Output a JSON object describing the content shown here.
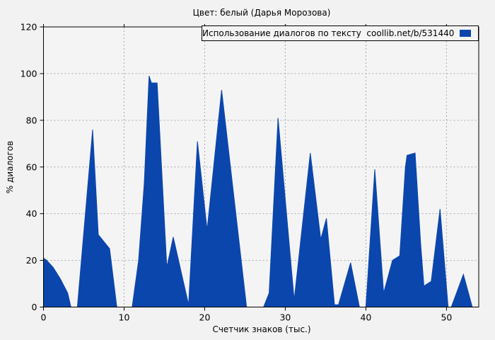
{
  "figure": {
    "background": "#f2f2f2",
    "plot_background": "#f4f4f4",
    "grid_color": "#a9a9a9",
    "spine_color": "#000000",
    "text_color": "#000000"
  },
  "chart_data": {
    "type": "area",
    "title": "Цвет: белый (Дарья Морозова)",
    "xlabel": "Счетчик знаков (тыс.)",
    "ylabel": "% диалогов",
    "xlim": [
      0,
      54
    ],
    "ylim": [
      0,
      120
    ],
    "xticks": [
      0,
      10,
      20,
      30,
      40,
      50
    ],
    "yticks": [
      0,
      20,
      40,
      60,
      80,
      100,
      120
    ],
    "grid": true,
    "grid_style": "dashed",
    "legend": {
      "label": "Использование диалогов по тексту  coollib.net/b/531440",
      "position": "upper right",
      "swatch_color": "#0b46ad"
    },
    "series": [
      {
        "name": "Использование диалогов по тексту coollib.net/b/531440",
        "color": "#0b46ad",
        "points": [
          [
            0,
            21
          ],
          [
            0.4,
            20
          ],
          [
            1.2,
            17
          ],
          [
            2.1,
            12
          ],
          [
            3.0,
            6
          ],
          [
            3.4,
            0
          ],
          [
            4.2,
            0
          ],
          [
            6.1,
            76
          ],
          [
            6.8,
            31
          ],
          [
            8.2,
            25
          ],
          [
            9.1,
            0
          ],
          [
            11.0,
            0
          ],
          [
            11.8,
            20
          ],
          [
            12.5,
            53
          ],
          [
            13.1,
            99
          ],
          [
            13.4,
            96
          ],
          [
            14.1,
            96
          ],
          [
            15.3,
            17
          ],
          [
            16.1,
            30
          ],
          [
            18.0,
            1
          ],
          [
            19.1,
            71
          ],
          [
            20.3,
            33
          ],
          [
            22.1,
            93
          ],
          [
            25.2,
            0
          ],
          [
            27.3,
            0
          ],
          [
            28.0,
            6
          ],
          [
            29.1,
            81
          ],
          [
            31.1,
            3
          ],
          [
            33.1,
            66
          ],
          [
            34.4,
            29
          ],
          [
            35.1,
            38
          ],
          [
            36.1,
            1
          ],
          [
            36.6,
            1
          ],
          [
            38.1,
            19
          ],
          [
            39.2,
            0
          ],
          [
            40.0,
            0
          ],
          [
            41.1,
            59
          ],
          [
            42.2,
            6
          ],
          [
            43.3,
            20
          ],
          [
            44.2,
            22
          ],
          [
            44.9,
            60
          ],
          [
            45.1,
            65
          ],
          [
            46.1,
            66
          ],
          [
            46.8,
            27
          ],
          [
            47.2,
            9
          ],
          [
            48.1,
            11
          ],
          [
            49.2,
            42
          ],
          [
            50.2,
            0
          ],
          [
            50.6,
            0
          ],
          [
            52.1,
            14
          ],
          [
            53.2,
            0
          ],
          [
            54.0,
            0
          ]
        ]
      }
    ]
  }
}
